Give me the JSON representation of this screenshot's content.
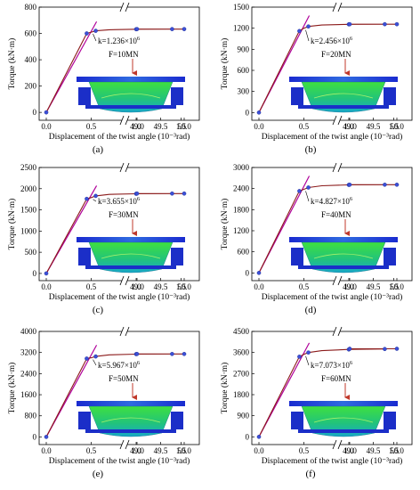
{
  "figure": {
    "panel_labels": [
      "(a)",
      "(b)",
      "(c)",
      "(d)",
      "(e)",
      "(f)"
    ]
  },
  "colors": {
    "linear_fit": "#b0009a",
    "curve": "#8b1a1a",
    "marker": "#3c50d8",
    "arrow": "#c0392b",
    "plate": "#1f2fc9",
    "body": "#36d13a"
  },
  "chart_data": [
    {
      "type": "line",
      "panel": "(a)",
      "xlabel": "Displacement of the twist angle (10⁻³rad)",
      "ylabel": "Torque (kN·m)",
      "x_ticks": [
        "0.0",
        "0.5",
        "1.0",
        "1.5",
        "49.0",
        "49.5",
        "50.0"
      ],
      "y_ticks": [
        0,
        200,
        400,
        600,
        800
      ],
      "ylim": [
        -60,
        800
      ],
      "axis_break": true,
      "k_label": "k=1.236×10",
      "k_exp": "6",
      "load_label": "F=10MN",
      "series": [
        {
          "role": "curve",
          "x": [
            0.0,
            0.45,
            0.5,
            0.55,
            0.7,
            1.0,
            1.4,
            49.0,
            50.0
          ],
          "y": [
            0,
            600,
            610,
            620,
            628,
            632,
            633,
            633,
            633
          ]
        },
        {
          "role": "linear-fit",
          "x": [
            0.0,
            0.56
          ],
          "y": [
            0,
            690
          ]
        }
      ]
    },
    {
      "type": "line",
      "panel": "(b)",
      "xlabel": "Displacement of the twist angle (10⁻³rad)",
      "ylabel": "Torque (kN·m)",
      "x_ticks": [
        "0.0",
        "0.5",
        "1.0",
        "1.5",
        "49.0",
        "49.5",
        "50.0"
      ],
      "y_ticks": [
        0,
        300,
        600,
        900,
        1200,
        1500
      ],
      "ylim": [
        -110,
        1500
      ],
      "axis_break": true,
      "k_label": "k=2.456×10",
      "k_exp": "6",
      "load_label": "F=20MN",
      "series": [
        {
          "role": "curve",
          "x": [
            0.0,
            0.45,
            0.5,
            0.55,
            0.7,
            1.0,
            1.4,
            49.0,
            50.0
          ],
          "y": [
            0,
            1160,
            1200,
            1225,
            1245,
            1255,
            1257,
            1257,
            1257
          ]
        },
        {
          "role": "linear-fit",
          "x": [
            0.0,
            0.56
          ],
          "y": [
            0,
            1380
          ]
        }
      ]
    },
    {
      "type": "line",
      "panel": "(c)",
      "xlabel": "Displacement of the twist angle (10⁻³rad)",
      "ylabel": "Torque (kN·m)",
      "x_ticks": [
        "0.0",
        "0.5",
        "1.0",
        "1.5",
        "49.0",
        "49.5",
        "50.0"
      ],
      "y_ticks": [
        0,
        500,
        1000,
        1500,
        2000,
        2500
      ],
      "ylim": [
        -170,
        2500
      ],
      "axis_break": true,
      "k_label": "k=3.655×10",
      "k_exp": "6",
      "load_label": "F=30MN",
      "series": [
        {
          "role": "curve",
          "x": [
            0.0,
            0.45,
            0.5,
            0.55,
            0.7,
            1.0,
            1.4,
            49.0,
            50.0
          ],
          "y": [
            0,
            1760,
            1790,
            1830,
            1865,
            1880,
            1885,
            1885,
            1885
          ]
        },
        {
          "role": "linear-fit",
          "x": [
            0.0,
            0.56
          ],
          "y": [
            0,
            2070
          ]
        }
      ]
    },
    {
      "type": "line",
      "panel": "(d)",
      "xlabel": "Displacement of the twist angle (10⁻³rad)",
      "ylabel": "Torque (kN·m)",
      "x_ticks": [
        "0.0",
        "0.5",
        "1.0",
        "1.5",
        "49.0",
        "49.5",
        "50.0"
      ],
      "y_ticks": [
        0,
        600,
        1200,
        1800,
        2400,
        3000
      ],
      "ylim": [
        -220,
        3000
      ],
      "axis_break": true,
      "k_label": "k=4.827×10",
      "k_exp": "6",
      "load_label": "F=40MN",
      "series": [
        {
          "role": "curve",
          "x": [
            0.0,
            0.45,
            0.5,
            0.55,
            0.7,
            1.0,
            1.4,
            49.0,
            50.0
          ],
          "y": [
            0,
            2330,
            2380,
            2430,
            2480,
            2505,
            2510,
            2510,
            2510
          ]
        },
        {
          "role": "linear-fit",
          "x": [
            0.0,
            0.56
          ],
          "y": [
            0,
            2760
          ]
        }
      ]
    },
    {
      "type": "line",
      "panel": "(e)",
      "xlabel": "Displacement of the twist angle (10⁻³rad)",
      "ylabel": "Torque (kN·m)",
      "x_ticks": [
        "0.0",
        "0.5",
        "1.0",
        "1.5",
        "49.0",
        "49.5",
        "50.0"
      ],
      "y_ticks": [
        0,
        800,
        1600,
        2400,
        3200,
        4000
      ],
      "ylim": [
        -290,
        4000
      ],
      "axis_break": true,
      "k_label": "k=5.967×10",
      "k_exp": "6",
      "load_label": "F=50MN",
      "series": [
        {
          "role": "curve",
          "x": [
            0.0,
            0.45,
            0.5,
            0.55,
            0.7,
            1.0,
            1.4,
            49.0,
            50.0
          ],
          "y": [
            0,
            2970,
            3000,
            3050,
            3110,
            3140,
            3145,
            3145,
            3145
          ]
        },
        {
          "role": "linear-fit",
          "x": [
            0.0,
            0.56
          ],
          "y": [
            0,
            3480
          ]
        }
      ]
    },
    {
      "type": "line",
      "panel": "(f)",
      "xlabel": "Displacement of the twist angle (10⁻³rad)",
      "ylabel": "Torque (kN·m)",
      "x_ticks": [
        "0.0",
        "0.5",
        "1.0",
        "1.5",
        "49.0",
        "49.5",
        "50.0"
      ],
      "y_ticks": [
        0,
        900,
        1800,
        2700,
        3600,
        4500
      ],
      "ylim": [
        -330,
        4500
      ],
      "axis_break": true,
      "k_label": "k=7.073×10",
      "k_exp": "6",
      "load_label": "F=60MN",
      "series": [
        {
          "role": "curve",
          "x": [
            0.0,
            0.45,
            0.5,
            0.55,
            0.7,
            1.0,
            1.4,
            49.0,
            50.0
          ],
          "y": [
            0,
            3420,
            3520,
            3600,
            3680,
            3730,
            3750,
            3760,
            3760
          ]
        },
        {
          "role": "linear-fit",
          "x": [
            0.0,
            0.56
          ],
          "y": [
            0,
            4010
          ]
        }
      ]
    }
  ]
}
